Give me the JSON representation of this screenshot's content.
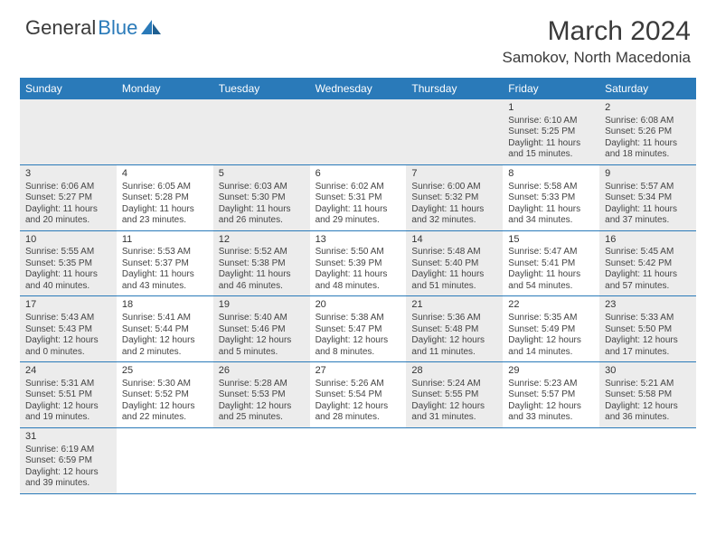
{
  "brand": {
    "a": "General",
    "b": "Blue"
  },
  "title": "March 2024",
  "location": "Samokov, North Macedonia",
  "daynames": [
    "Sunday",
    "Monday",
    "Tuesday",
    "Wednesday",
    "Thursday",
    "Friday",
    "Saturday"
  ],
  "colors": {
    "header_bg": "#2a7ab9",
    "header_fg": "#ffffff",
    "cell_alt": "#ececec",
    "rule": "#2a7ab9",
    "text": "#333333"
  },
  "weeks": [
    [
      null,
      null,
      null,
      null,
      null,
      {
        "n": "1",
        "r": "Sunrise: 6:10 AM",
        "s": "Sunset: 5:25 PM",
        "d1": "Daylight: 11 hours",
        "d2": "and 15 minutes."
      },
      {
        "n": "2",
        "r": "Sunrise: 6:08 AM",
        "s": "Sunset: 5:26 PM",
        "d1": "Daylight: 11 hours",
        "d2": "and 18 minutes."
      }
    ],
    [
      {
        "n": "3",
        "r": "Sunrise: 6:06 AM",
        "s": "Sunset: 5:27 PM",
        "d1": "Daylight: 11 hours",
        "d2": "and 20 minutes."
      },
      {
        "n": "4",
        "r": "Sunrise: 6:05 AM",
        "s": "Sunset: 5:28 PM",
        "d1": "Daylight: 11 hours",
        "d2": "and 23 minutes."
      },
      {
        "n": "5",
        "r": "Sunrise: 6:03 AM",
        "s": "Sunset: 5:30 PM",
        "d1": "Daylight: 11 hours",
        "d2": "and 26 minutes."
      },
      {
        "n": "6",
        "r": "Sunrise: 6:02 AM",
        "s": "Sunset: 5:31 PM",
        "d1": "Daylight: 11 hours",
        "d2": "and 29 minutes."
      },
      {
        "n": "7",
        "r": "Sunrise: 6:00 AM",
        "s": "Sunset: 5:32 PM",
        "d1": "Daylight: 11 hours",
        "d2": "and 32 minutes."
      },
      {
        "n": "8",
        "r": "Sunrise: 5:58 AM",
        "s": "Sunset: 5:33 PM",
        "d1": "Daylight: 11 hours",
        "d2": "and 34 minutes."
      },
      {
        "n": "9",
        "r": "Sunrise: 5:57 AM",
        "s": "Sunset: 5:34 PM",
        "d1": "Daylight: 11 hours",
        "d2": "and 37 minutes."
      }
    ],
    [
      {
        "n": "10",
        "r": "Sunrise: 5:55 AM",
        "s": "Sunset: 5:35 PM",
        "d1": "Daylight: 11 hours",
        "d2": "and 40 minutes."
      },
      {
        "n": "11",
        "r": "Sunrise: 5:53 AM",
        "s": "Sunset: 5:37 PM",
        "d1": "Daylight: 11 hours",
        "d2": "and 43 minutes."
      },
      {
        "n": "12",
        "r": "Sunrise: 5:52 AM",
        "s": "Sunset: 5:38 PM",
        "d1": "Daylight: 11 hours",
        "d2": "and 46 minutes."
      },
      {
        "n": "13",
        "r": "Sunrise: 5:50 AM",
        "s": "Sunset: 5:39 PM",
        "d1": "Daylight: 11 hours",
        "d2": "and 48 minutes."
      },
      {
        "n": "14",
        "r": "Sunrise: 5:48 AM",
        "s": "Sunset: 5:40 PM",
        "d1": "Daylight: 11 hours",
        "d2": "and 51 minutes."
      },
      {
        "n": "15",
        "r": "Sunrise: 5:47 AM",
        "s": "Sunset: 5:41 PM",
        "d1": "Daylight: 11 hours",
        "d2": "and 54 minutes."
      },
      {
        "n": "16",
        "r": "Sunrise: 5:45 AM",
        "s": "Sunset: 5:42 PM",
        "d1": "Daylight: 11 hours",
        "d2": "and 57 minutes."
      }
    ],
    [
      {
        "n": "17",
        "r": "Sunrise: 5:43 AM",
        "s": "Sunset: 5:43 PM",
        "d1": "Daylight: 12 hours",
        "d2": "and 0 minutes."
      },
      {
        "n": "18",
        "r": "Sunrise: 5:41 AM",
        "s": "Sunset: 5:44 PM",
        "d1": "Daylight: 12 hours",
        "d2": "and 2 minutes."
      },
      {
        "n": "19",
        "r": "Sunrise: 5:40 AM",
        "s": "Sunset: 5:46 PM",
        "d1": "Daylight: 12 hours",
        "d2": "and 5 minutes."
      },
      {
        "n": "20",
        "r": "Sunrise: 5:38 AM",
        "s": "Sunset: 5:47 PM",
        "d1": "Daylight: 12 hours",
        "d2": "and 8 minutes."
      },
      {
        "n": "21",
        "r": "Sunrise: 5:36 AM",
        "s": "Sunset: 5:48 PM",
        "d1": "Daylight: 12 hours",
        "d2": "and 11 minutes."
      },
      {
        "n": "22",
        "r": "Sunrise: 5:35 AM",
        "s": "Sunset: 5:49 PM",
        "d1": "Daylight: 12 hours",
        "d2": "and 14 minutes."
      },
      {
        "n": "23",
        "r": "Sunrise: 5:33 AM",
        "s": "Sunset: 5:50 PM",
        "d1": "Daylight: 12 hours",
        "d2": "and 17 minutes."
      }
    ],
    [
      {
        "n": "24",
        "r": "Sunrise: 5:31 AM",
        "s": "Sunset: 5:51 PM",
        "d1": "Daylight: 12 hours",
        "d2": "and 19 minutes."
      },
      {
        "n": "25",
        "r": "Sunrise: 5:30 AM",
        "s": "Sunset: 5:52 PM",
        "d1": "Daylight: 12 hours",
        "d2": "and 22 minutes."
      },
      {
        "n": "26",
        "r": "Sunrise: 5:28 AM",
        "s": "Sunset: 5:53 PM",
        "d1": "Daylight: 12 hours",
        "d2": "and 25 minutes."
      },
      {
        "n": "27",
        "r": "Sunrise: 5:26 AM",
        "s": "Sunset: 5:54 PM",
        "d1": "Daylight: 12 hours",
        "d2": "and 28 minutes."
      },
      {
        "n": "28",
        "r": "Sunrise: 5:24 AM",
        "s": "Sunset: 5:55 PM",
        "d1": "Daylight: 12 hours",
        "d2": "and 31 minutes."
      },
      {
        "n": "29",
        "r": "Sunrise: 5:23 AM",
        "s": "Sunset: 5:57 PM",
        "d1": "Daylight: 12 hours",
        "d2": "and 33 minutes."
      },
      {
        "n": "30",
        "r": "Sunrise: 5:21 AM",
        "s": "Sunset: 5:58 PM",
        "d1": "Daylight: 12 hours",
        "d2": "and 36 minutes."
      }
    ],
    [
      {
        "n": "31",
        "r": "Sunrise: 6:19 AM",
        "s": "Sunset: 6:59 PM",
        "d1": "Daylight: 12 hours",
        "d2": "and 39 minutes."
      },
      null,
      null,
      null,
      null,
      null,
      null
    ]
  ]
}
